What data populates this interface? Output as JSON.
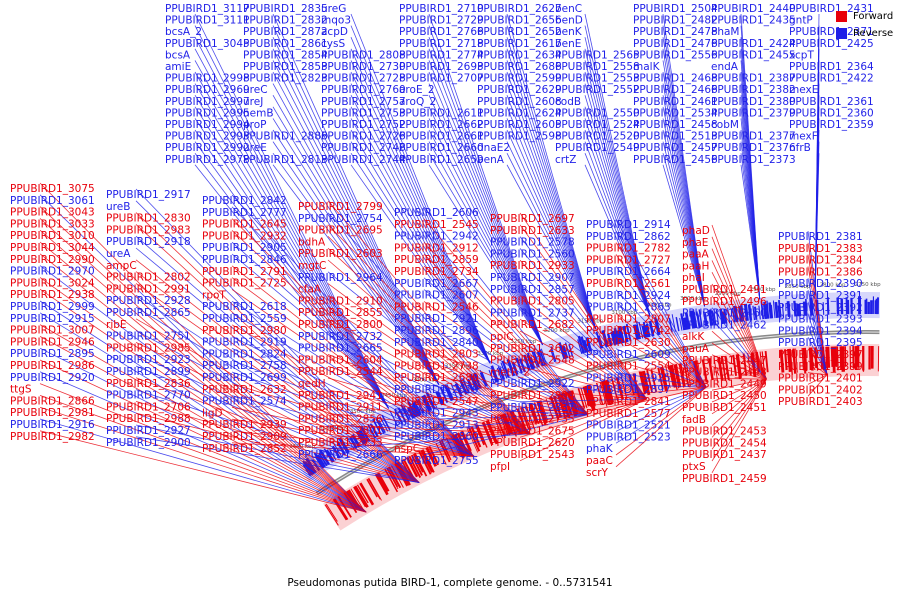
{
  "caption": "Pseudomonas putida BIRD-1, complete genome. - 0..5731541",
  "legend": {
    "forward_label": "Forward",
    "reverse_label": "Reverse",
    "forward_color": "#e8000b",
    "reverse_color": "#1f1fe8"
  },
  "ruler_ticks": [
    "3600 kbp",
    "3550 kbp",
    "3500 kbp",
    "3450 kbp",
    "3400 kbp",
    "3350 kbp",
    "3300 kbp",
    "3250 kbp",
    "3200 kbp",
    "3150 kbp",
    "3100 kbp",
    "3050 kbp",
    "3000 kbp",
    "2950 kbp",
    "2900 kbp",
    "2850 kbp",
    "2800 kbp",
    "2750 kbp"
  ],
  "labels_top": [
    [
      "PPUBIRD1_3117",
      "b"
    ],
    [
      "PPUBIRD1_3111",
      "b"
    ],
    [
      "bcsA_2",
      "b"
    ],
    [
      "PPUBIRD1_3045",
      "b"
    ],
    [
      "bcsA",
      "b"
    ],
    [
      "amiE",
      "b"
    ],
    [
      "PPUBIRD1_2998",
      "b"
    ],
    [
      "PPUBIRD1_2969",
      "b"
    ],
    [
      "PPUBIRD1_2997",
      "b"
    ],
    [
      "PPUBIRD1_2995",
      "b"
    ],
    [
      "PPUBIRD1_2994",
      "b"
    ],
    [
      "PPUBIRD1_2993",
      "b"
    ],
    [
      "PPUBIRD1_2992",
      "b"
    ],
    [
      "PPUBIRD1_2978",
      "b"
    ],
    [
      "PPUBIRD1_2835",
      "b"
    ],
    [
      "PPUBIRD1_2832",
      "b"
    ],
    [
      "PPUBIRD1_2872",
      "b"
    ],
    [
      "PPUBIRD1_2861",
      "b"
    ],
    [
      "PPUBIRD1_2854",
      "b"
    ],
    [
      "PPUBIRD1_2853",
      "b"
    ],
    [
      "PPUBIRD1_2823",
      "b"
    ],
    [
      "ureC",
      "b"
    ],
    [
      "ureJ",
      "b"
    ],
    [
      "hemB",
      "b"
    ],
    [
      "proP",
      "b"
    ],
    [
      "PPUBIRD1_2886",
      "b"
    ],
    [
      "ureE",
      "b"
    ],
    [
      "PPUBIRD1_2813",
      "b"
    ],
    [
      "ureG",
      "b"
    ],
    [
      "mqo3",
      "b"
    ],
    [
      "acpD",
      "b"
    ],
    [
      "cysS",
      "b"
    ],
    [
      "PPUBIRD1_2808",
      "b"
    ],
    [
      "PPUBIRD1_2730",
      "b"
    ],
    [
      "PPUBIRD1_2728",
      "b"
    ],
    [
      "PPUBIRD1_2760",
      "b"
    ],
    [
      "PPUBIRD1_2757",
      "b"
    ],
    [
      "PPUBIRD1_2753",
      "b"
    ],
    [
      "PPUBIRD1_2752",
      "b"
    ],
    [
      "PPUBIRD1_2726",
      "b"
    ],
    [
      "PPUBIRD1_2746",
      "b"
    ],
    [
      "PPUBIRD1_2744",
      "b"
    ],
    [
      "PPUBIRD1_2710",
      "b"
    ],
    [
      "PPUBIRD1_2729",
      "b"
    ],
    [
      "PPUBIRD1_2766",
      "b"
    ],
    [
      "PPUBIRD1_2718",
      "b"
    ],
    [
      "PPUBIRD1_2774",
      "b"
    ],
    [
      "PPUBIRD1_2693",
      "b"
    ],
    [
      "PPUBIRD1_2707",
      "b"
    ],
    [
      "aroE_2",
      "b"
    ],
    [
      "aroQ_2",
      "b"
    ],
    [
      "PPUBIRD1_2611",
      "b"
    ],
    [
      "PPUBIRD1_2662",
      "b"
    ],
    [
      "PPUBIRD1_2661",
      "b"
    ],
    [
      "PPUBIRD1_2660",
      "b"
    ],
    [
      "PPUBIRD1_2659",
      "b"
    ],
    [
      "PPUBIRD1_2627",
      "b"
    ],
    [
      "PPUBIRD1_2656",
      "b"
    ],
    [
      "PPUBIRD1_2652",
      "b"
    ],
    [
      "PPUBIRD1_2617",
      "b"
    ],
    [
      "PPUBIRD1_2634",
      "b"
    ],
    [
      "PPUBIRD1_2686",
      "b"
    ],
    [
      "PPUBIRD1_2599",
      "b"
    ],
    [
      "PPUBIRD1_2629",
      "b"
    ],
    [
      "PPUBIRD1_2608",
      "b"
    ],
    [
      "PPUBIRD1_2624",
      "b"
    ],
    [
      "PPUBIRD1_2605",
      "b"
    ],
    [
      "PPUBIRD1_2598",
      "b"
    ],
    [
      "dnaE2",
      "b"
    ],
    [
      "benA",
      "b"
    ],
    [
      "benC",
      "b"
    ],
    [
      "benD",
      "b"
    ],
    [
      "benK",
      "b"
    ],
    [
      "benE",
      "b"
    ],
    [
      "PPUBIRD1_2565",
      "b"
    ],
    [
      "PPUBIRD1_2558",
      "b"
    ],
    [
      "PPUBIRD1_2553",
      "b"
    ],
    [
      "PPUBIRD1_2552",
      "b"
    ],
    [
      "codB",
      "b"
    ],
    [
      "PPUBIRD1_2550",
      "b"
    ],
    [
      "PPUBIRD1_2524",
      "b"
    ],
    [
      "PPUBIRD1_2520",
      "b"
    ],
    [
      "PPUBIRD1_2549",
      "b"
    ],
    [
      "crtZ",
      "b"
    ],
    [
      "PPUBIRD1_2504",
      "b"
    ],
    [
      "PPUBIRD1_2482",
      "b"
    ],
    [
      "PPUBIRD1_2478",
      "b"
    ],
    [
      "PPUBIRD1_2476",
      "b"
    ],
    [
      "PPUBIRD1_2556",
      "b"
    ],
    [
      "malK",
      "b"
    ],
    [
      "PPUBIRD1_2468",
      "b"
    ],
    [
      "PPUBIRD1_2466",
      "b"
    ],
    [
      "PPUBIRD1_2461",
      "b"
    ],
    [
      "PPUBIRD1_2534",
      "b"
    ],
    [
      "PPUBIRD1_2458",
      "b"
    ],
    [
      "PPUBIRD1_2513",
      "b"
    ],
    [
      "PPUBIRD1_2457",
      "b"
    ],
    [
      "PPUBIRD1_2456",
      "b"
    ],
    [
      "PPUBIRD1_2440",
      "b"
    ],
    [
      "PPUBIRD1_2435",
      "b"
    ],
    [
      "PhaM",
      "b"
    ],
    [
      "PPUBIRD1_2424",
      "b"
    ],
    [
      "PPUBIRD1_2455",
      "b"
    ],
    [
      "endA",
      "b"
    ],
    [
      "PPUBIRD1_2387",
      "b"
    ],
    [
      "PPUBIRD1_2382",
      "b"
    ],
    [
      "PPUBIRD1_2380",
      "b"
    ],
    [
      "PPUBIRD1_2379",
      "b"
    ],
    [
      "cobM",
      "b"
    ],
    [
      "PPUBIRD1_2377",
      "b"
    ],
    [
      "PPUBIRD1_2376",
      "b"
    ],
    [
      "PPUBIRD1_2373",
      "b"
    ],
    [
      "PPUBIRD1_2431",
      "b"
    ],
    [
      "gntP",
      "b"
    ],
    [
      "PPUBIRD1_2371",
      "b"
    ],
    [
      "PPUBIRD1_2425",
      "b"
    ],
    [
      "xcpT",
      "b"
    ],
    [
      "PPUBIRD1_2364",
      "b"
    ],
    [
      "PPUBIRD1_2422",
      "b"
    ],
    [
      "mexE",
      "b"
    ],
    [
      "PPUBIRD1_2361",
      "b"
    ],
    [
      "PPUBIRD1_2360",
      "b"
    ],
    [
      "PPUBIRD1_2359",
      "b"
    ],
    [
      "mexF",
      "b"
    ],
    [
      "nfrB",
      "b"
    ]
  ],
  "labels_bottom": [
    [
      "PPUBIRD1_3075",
      "r"
    ],
    [
      "PPUBIRD1_3061",
      "b"
    ],
    [
      "PPUBIRD1_3043",
      "r"
    ],
    [
      "PPUBIRD1_3033",
      "r"
    ],
    [
      "PPUBIRD1_3010",
      "r"
    ],
    [
      "PPUBIRD1_3044",
      "r"
    ],
    [
      "PPUBIRD1_2990",
      "r"
    ],
    [
      "PPUBIRD1_2970",
      "b"
    ],
    [
      "PPUBIRD1_3024",
      "r"
    ],
    [
      "PPUBIRD1_2938",
      "r"
    ],
    [
      "PPUBIRD1_2999",
      "b"
    ],
    [
      "PPUBIRD1_2915",
      "b"
    ],
    [
      "PPUBIRD1_3007",
      "r"
    ],
    [
      "PPUBIRD1_2946",
      "r"
    ],
    [
      "PPUBIRD1_2895",
      "b"
    ],
    [
      "PPUBIRD1_2986",
      "r"
    ],
    [
      "PPUBIRD1_2920",
      "b"
    ],
    [
      "ttgS",
      "r"
    ],
    [
      "PPUBIRD1_2866",
      "r"
    ],
    [
      "PPUBIRD1_2981",
      "r"
    ],
    [
      "PPUBIRD1_2916",
      "b"
    ],
    [
      "PPUBIRD1_2982",
      "r"
    ],
    [
      "PPUBIRD1_2917",
      "b"
    ],
    [
      "ureB",
      "b"
    ],
    [
      "PPUBIRD1_2830",
      "r"
    ],
    [
      "PPUBIRD1_2983",
      "r"
    ],
    [
      "PPUBIRD1_2918",
      "b"
    ],
    [
      "ureA",
      "b"
    ],
    [
      "ampC",
      "r"
    ],
    [
      "PPUBIRD1_2802",
      "r"
    ],
    [
      "PPUBIRD1_2991",
      "r"
    ],
    [
      "PPUBIRD1_2928",
      "b"
    ],
    [
      "PPUBIRD1_2865",
      "b"
    ],
    [
      "ribE",
      "r"
    ],
    [
      "PPUBIRD1_2751",
      "b"
    ],
    [
      "PPUBIRD1_2985",
      "r"
    ],
    [
      "PPUBIRD1_2923",
      "b"
    ],
    [
      "PPUBIRD1_2899",
      "b"
    ],
    [
      "PPUBIRD1_2836",
      "r"
    ],
    [
      "PPUBIRD1_2770",
      "b"
    ],
    [
      "PPUBIRD1_2706",
      "r"
    ],
    [
      "PPUBIRD1_2988",
      "r"
    ],
    [
      "PPUBIRD1_2927",
      "b"
    ],
    [
      "PPUBIRD1_2900",
      "b"
    ],
    [
      "PPUBIRD1_2842",
      "b"
    ],
    [
      "PPUBIRD1_2777",
      "b"
    ],
    [
      "PPUBIRD1_2645",
      "r"
    ],
    [
      "PPUBIRD1_2932",
      "r"
    ],
    [
      "PPUBIRD1_2905",
      "b"
    ],
    [
      "PPUBIRD1_2846",
      "b"
    ],
    [
      "PPUBIRD1_2791",
      "r"
    ],
    [
      "PPUBIRD1_2725",
      "r"
    ],
    [
      "rpoT",
      "r"
    ],
    [
      "PPUBIRD1_2618",
      "b"
    ],
    [
      "PPUBIRD1_2559",
      "b"
    ],
    [
      "PPUBIRD1_2980",
      "r"
    ],
    [
      "PPUBIRD1_2919",
      "b"
    ],
    [
      "PPUBIRD1_2824",
      "b"
    ],
    [
      "PPUBIRD1_2758",
      "b"
    ],
    [
      "PPUBIRD1_2699",
      "b"
    ],
    [
      "PPUBIRD1_2632",
      "r"
    ],
    [
      "PPUBIRD1_2574",
      "b"
    ],
    [
      "ligD",
      "r"
    ],
    [
      "PPUBIRD1_2939",
      "r"
    ],
    [
      "PPUBIRD1_2909",
      "r"
    ],
    [
      "PPUBIRD1_2852",
      "r"
    ],
    [
      "PPUBIRD1_2799",
      "r"
    ],
    [
      "PPUBIRD1_2754",
      "b"
    ],
    [
      "PPUBIRD1_2695",
      "r"
    ],
    [
      "bdhA",
      "r"
    ],
    [
      "PPUBIRD1_2603",
      "r"
    ],
    [
      "mgtC",
      "r"
    ],
    [
      "PPUBIRD1_2964",
      "b"
    ],
    [
      "cfaA",
      "r"
    ],
    [
      "PPUBIRD1_2910",
      "r"
    ],
    [
      "PPUBIRD1_2855",
      "r"
    ],
    [
      "PPUBIRD1_2800",
      "r"
    ],
    [
      "PPUBIRD1_2732",
      "b"
    ],
    [
      "PPUBIRD1_2665",
      "b"
    ],
    [
      "PPUBIRD1_2604",
      "r"
    ],
    [
      "PPUBIRD1_2544",
      "r"
    ],
    [
      "qedH",
      "r"
    ],
    [
      "PPUBIRD1_2941",
      "r"
    ],
    [
      "PPUBIRD1_2911",
      "r"
    ],
    [
      "PPUBIRD1_2856",
      "r"
    ],
    [
      "PPUBIRD1_2801",
      "r"
    ],
    [
      "PPUBIRD1_2733",
      "r"
    ],
    [
      "PPUBIRD1_2666",
      "b"
    ],
    [
      "PPUBIRD1_2606",
      "b"
    ],
    [
      "PPUBIRD1_2545",
      "r"
    ],
    [
      "PPUBIRD1_2942",
      "b"
    ],
    [
      "PPUBIRD1_2912",
      "r"
    ],
    [
      "PPUBIRD1_2859",
      "r"
    ],
    [
      "PPUBIRD1_2734",
      "r"
    ],
    [
      "PPUBIRD1_2667",
      "b"
    ],
    [
      "PPUBIRD1_2607",
      "b"
    ],
    [
      "PPUBIRD1_2546",
      "r"
    ],
    [
      "PPUBIRD1_2921",
      "b"
    ],
    [
      "PPUBIRD1_2896",
      "b"
    ],
    [
      "PPUBIRD1_2840",
      "b"
    ],
    [
      "PPUBIRD1_2803",
      "r"
    ],
    [
      "PPUBIRD1_2738",
      "r"
    ],
    [
      "PPUBIRD1_2680",
      "r"
    ],
    [
      "PPUBIRD1_2619",
      "b"
    ],
    [
      "PPUBIRD1_2547",
      "r"
    ],
    [
      "PPUBIRD1_2943",
      "b"
    ],
    [
      "PPUBIRD1_2913",
      "b"
    ],
    [
      "PPUBIRD1_2860",
      "b"
    ],
    [
      "nspC",
      "r"
    ],
    [
      "PPUBIRD1_2755",
      "b"
    ],
    [
      "PPUBIRD1_2697",
      "r"
    ],
    [
      "PPUBIRD1_2633",
      "r"
    ],
    [
      "PPUBIRD1_2578",
      "b"
    ],
    [
      "PPUBIRD1_2560",
      "b"
    ],
    [
      "PPUBIRD1_2933",
      "r"
    ],
    [
      "PPUBIRD1_2907",
      "b"
    ],
    [
      "PPUBIRD1_2857",
      "b"
    ],
    [
      "PPUBIRD1_2805",
      "r"
    ],
    [
      "PPUBIRD1_2737",
      "b"
    ],
    [
      "PPUBIRD1_2682",
      "r"
    ],
    [
      "ppiC",
      "r"
    ],
    [
      "PPUBIRD1_2602",
      "r"
    ],
    [
      "PPUBIRD1_2548",
      "r"
    ],
    [
      "metR_2",
      "r"
    ],
    [
      "PPUBIRD1_2922",
      "b"
    ],
    [
      "PPUBIRD1_2894",
      "r"
    ],
    [
      "PPUBIRD1_2837",
      "b"
    ],
    [
      "PPUBIRD1_2735",
      "r"
    ],
    [
      "PPUBIRD1_2675",
      "r"
    ],
    [
      "PPUBIRD1_2620",
      "r"
    ],
    [
      "PPUBIRD1_2543",
      "r"
    ],
    [
      "pfpI",
      "r"
    ],
    [
      "PPUBIRD1_2914",
      "b"
    ],
    [
      "PPUBIRD1_2862",
      "b"
    ],
    [
      "PPUBIRD1_2782",
      "r"
    ],
    [
      "PPUBIRD1_2727",
      "r"
    ],
    [
      "PPUBIRD1_2664",
      "b"
    ],
    [
      "PPUBIRD1_2561",
      "r"
    ],
    [
      "PPUBIRD1_2924",
      "b"
    ],
    [
      "PPUBIRD1_2863",
      "b"
    ],
    [
      "PPUBIRD1_2807",
      "r"
    ],
    [
      "PPUBIRD1_2742",
      "r"
    ],
    [
      "PPUBIRD1_2630",
      "r"
    ],
    [
      "PPUBIRD1_2609",
      "b"
    ],
    [
      "PPUBIRD1_2554",
      "r"
    ],
    [
      "PPUBIRD1_2925",
      "b"
    ],
    [
      "PPUBIRD1_2897",
      "b"
    ],
    [
      "PPUBIRD1_2841",
      "r"
    ],
    [
      "PPUBIRD1_2577",
      "r"
    ],
    [
      "PPUBIRD1_2521",
      "b"
    ],
    [
      "PPUBIRD1_2523",
      "b"
    ],
    [
      "phaK",
      "b"
    ],
    [
      "paaC",
      "r"
    ],
    [
      "scrY",
      "r"
    ],
    [
      "phaD",
      "r"
    ],
    [
      "phaE",
      "r"
    ],
    [
      "paaA",
      "r"
    ],
    [
      "paaH",
      "r"
    ],
    [
      "phaI",
      "r"
    ],
    [
      "PPUBIRD1_2491",
      "r"
    ],
    [
      "PPUBIRD1_2496",
      "r"
    ],
    [
      "PPUBIRD1_2460",
      "b"
    ],
    [
      "PPUBIRD1_2462",
      "b"
    ],
    [
      "alkK",
      "r"
    ],
    [
      "pauA",
      "r"
    ],
    [
      "PPUBIRD1_2447",
      "r"
    ],
    [
      "PPUBIRD1_2448",
      "r"
    ],
    [
      "PPUBIRD1_2449",
      "r"
    ],
    [
      "PPUBIRD1_2450",
      "r"
    ],
    [
      "PPUBIRD1_2451",
      "r"
    ],
    [
      "fadB",
      "r"
    ],
    [
      "PPUBIRD1_2453",
      "r"
    ],
    [
      "PPUBIRD1_2454",
      "r"
    ],
    [
      "PPUBIRD1_2437",
      "r"
    ],
    [
      "ptxS",
      "r"
    ],
    [
      "PPUBIRD1_2459",
      "r"
    ],
    [
      "PPUBIRD1_2381",
      "b"
    ],
    [
      "PPUBIRD1_2383",
      "r"
    ],
    [
      "PPUBIRD1_2384",
      "r"
    ],
    [
      "PPUBIRD1_2386",
      "r"
    ],
    [
      "PPUBIRD1_2390",
      "b"
    ],
    [
      "PPUBIRD1_2391",
      "b"
    ],
    [
      "PPUBIRD1_2392",
      "b"
    ],
    [
      "PPUBIRD1_2393",
      "b"
    ],
    [
      "PPUBIRD1_2394",
      "b"
    ],
    [
      "PPUBIRD1_2395",
      "b"
    ],
    [
      "PPUBIRD1_2397",
      "r"
    ],
    [
      "PPUBIRD1_2399",
      "r"
    ],
    [
      "PPUBIRD1_2401",
      "r"
    ],
    [
      "PPUBIRD1_2402",
      "r"
    ],
    [
      "PPUBIRD1_2403",
      "r"
    ]
  ]
}
